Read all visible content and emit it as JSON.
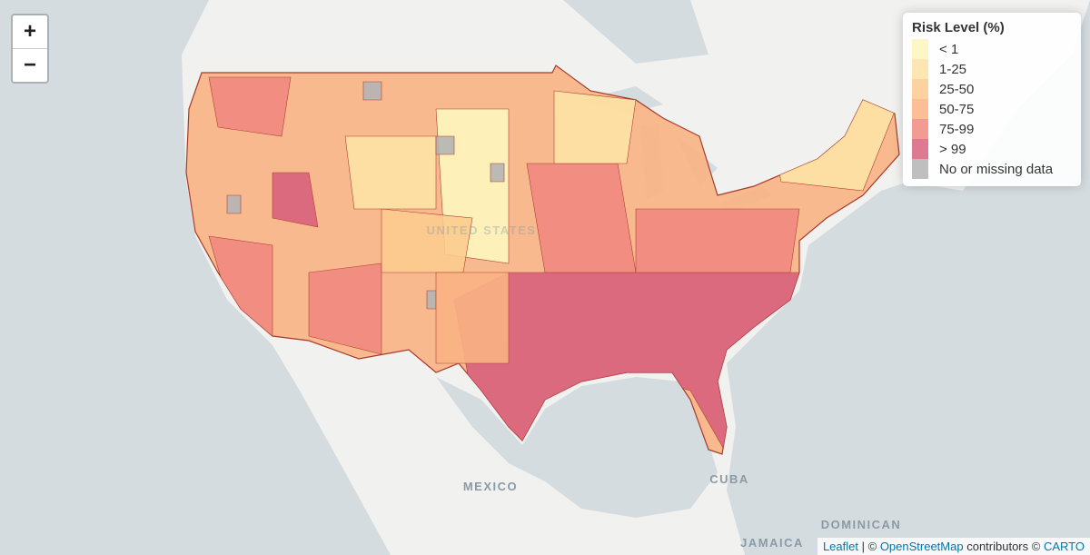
{
  "zoom_controls": {
    "zoom_in": "+",
    "zoom_out": "−"
  },
  "legend": {
    "title": "Risk Level (%)",
    "items": [
      {
        "label": "< 1",
        "color": "#fdf6bd"
      },
      {
        "label": "1-25",
        "color": "#fde2a5"
      },
      {
        "label": "25-50",
        "color": "#fccb8e"
      },
      {
        "label": "50-75",
        "color": "#fab383"
      },
      {
        "label": "75-99",
        "color": "#f08a80"
      },
      {
        "label": "> 99",
        "color": "#d7627c"
      },
      {
        "label": "No or missing data",
        "color": "#b4b4b4"
      }
    ]
  },
  "map_labels": [
    "UNITED STATES",
    "MEXICO",
    "CUBA",
    "DOMINICAN",
    "JAMAICA"
  ],
  "attribution": {
    "leaflet": "Leaflet",
    "separator": "| ©",
    "osm": "OpenStreetMap",
    "contributors": "contributors ©",
    "carto": "CARTO"
  }
}
